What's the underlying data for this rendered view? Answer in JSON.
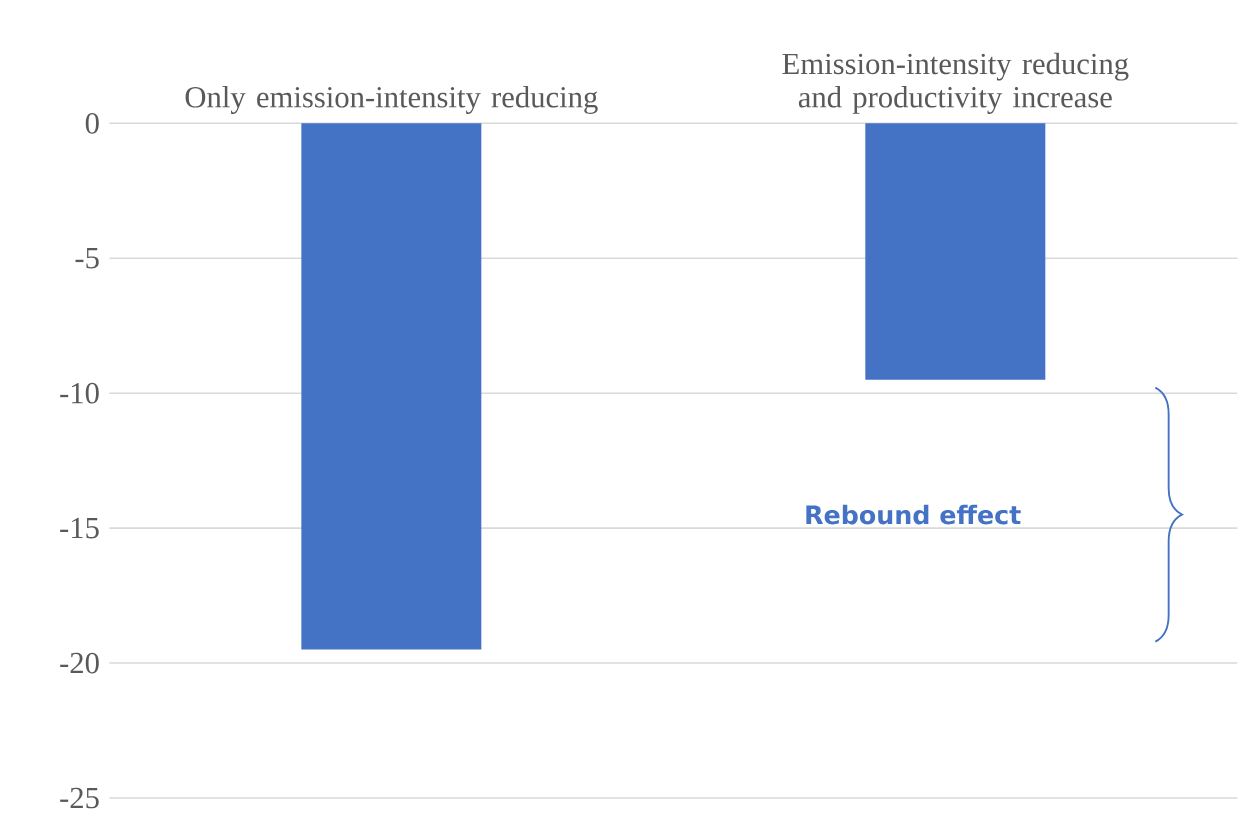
{
  "chart_data": {
    "type": "bar",
    "categories": [
      "Only emission-intensity reducing",
      "Emission-intensity reducing and productivity increase"
    ],
    "values": [
      -19.5,
      -9.5
    ],
    "color": "#4472c4",
    "ylim": [
      -25,
      0
    ],
    "yticks": [
      -25,
      -20,
      -15,
      -10,
      -5,
      0
    ],
    "grid": "y",
    "annotations": [
      "Rebound effect"
    ]
  }
}
